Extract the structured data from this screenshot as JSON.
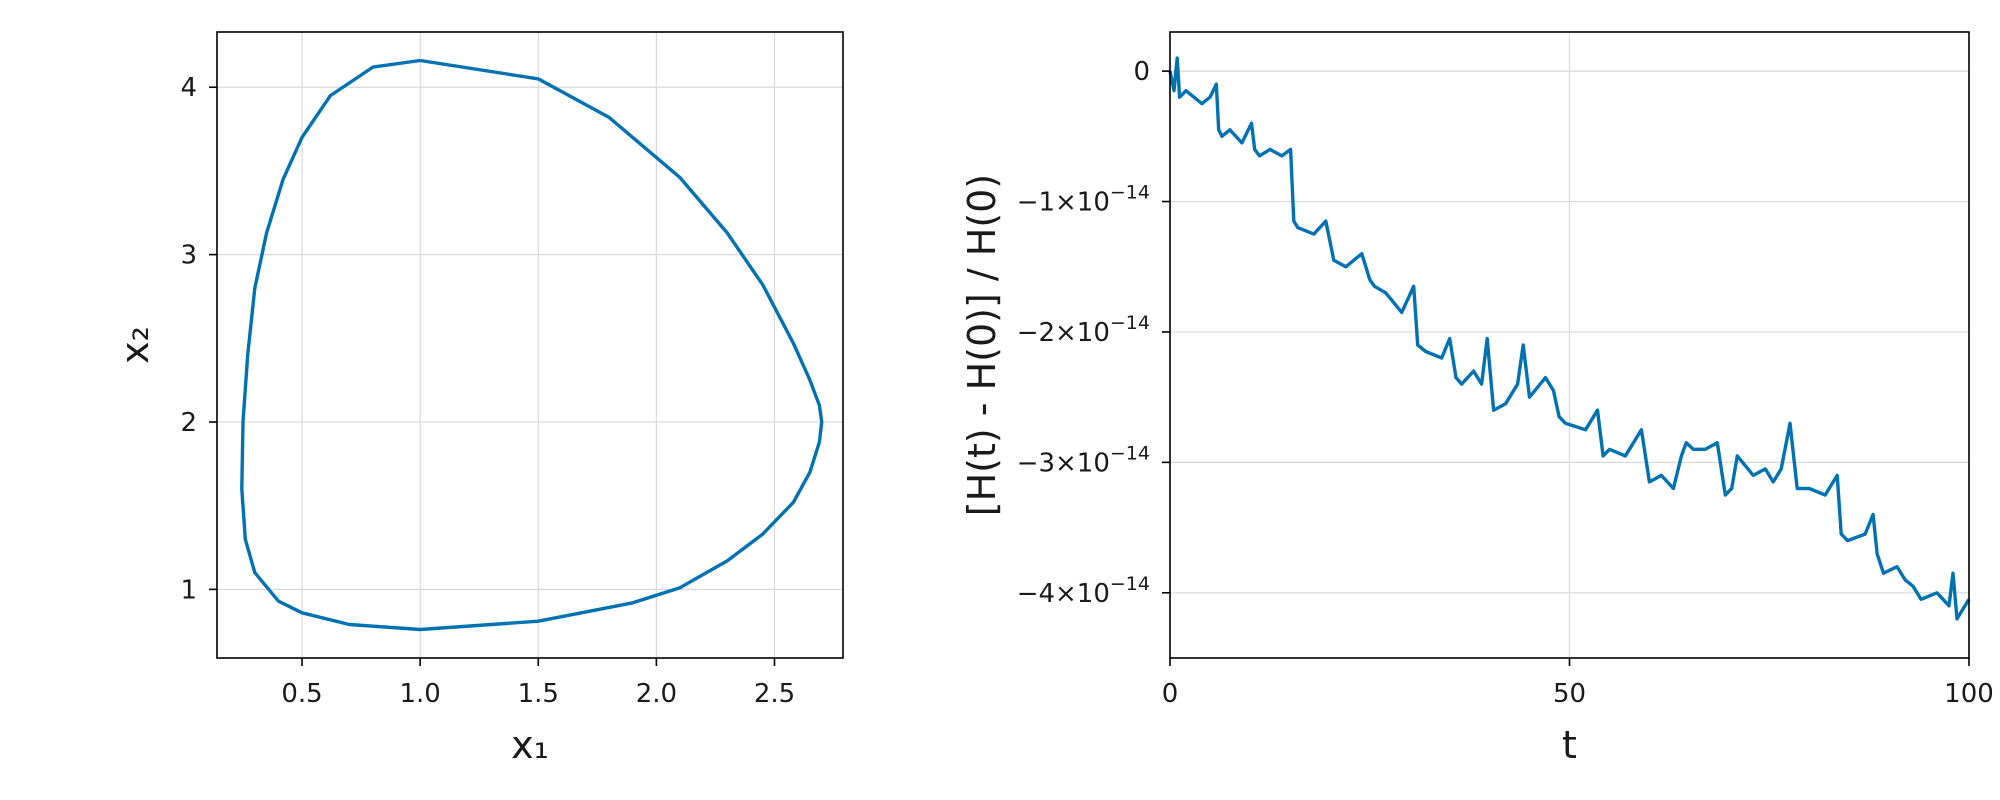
{
  "chart_data": [
    {
      "type": "line",
      "title": "",
      "xlabel": "x₁",
      "ylabel": "x₂",
      "xlim": [
        0.14,
        2.79
      ],
      "ylim": [
        0.59,
        4.33
      ],
      "xticks": [
        0.5,
        1.0,
        1.5,
        2.0,
        2.5
      ],
      "xtick_labels": [
        "0.5",
        "1.0",
        "1.5",
        "2.0",
        "2.5"
      ],
      "yticks": [
        1,
        2,
        3,
        4
      ],
      "ytick_labels": [
        "1",
        "2",
        "3",
        "4"
      ],
      "grid": true,
      "color": "#0072b2",
      "series": [
        {
          "x": [
            1.0,
            1.5,
            1.8,
            2.1,
            2.3,
            2.45,
            2.58,
            2.65,
            2.69,
            2.7,
            2.69,
            2.65,
            2.58,
            2.45,
            2.3,
            2.1,
            1.9,
            1.5,
            1.0,
            0.7,
            0.5,
            0.4,
            0.3,
            0.26,
            0.245,
            0.25,
            0.27,
            0.3,
            0.35,
            0.42,
            0.5,
            0.62,
            0.8,
            1.0
          ],
          "y": [
            4.16,
            4.05,
            3.82,
            3.46,
            3.13,
            2.82,
            2.47,
            2.25,
            2.1,
            2.0,
            1.88,
            1.7,
            1.52,
            1.33,
            1.17,
            1.01,
            0.92,
            0.81,
            0.76,
            0.79,
            0.86,
            0.93,
            1.1,
            1.3,
            1.6,
            2.0,
            2.4,
            2.8,
            3.13,
            3.45,
            3.7,
            3.95,
            4.12,
            4.16
          ]
        }
      ]
    },
    {
      "type": "line",
      "title": "",
      "xlabel": "t",
      "ylabel": "[H(t) - H(0)] / H(0)",
      "xlim": [
        0,
        100
      ],
      "ylim": [
        -4.5e-14,
        3e-15
      ],
      "xticks": [
        0,
        50,
        100
      ],
      "xtick_labels": [
        "0",
        "50",
        "100"
      ],
      "yticks": [
        0,
        -1e-14,
        -2e-14,
        -3e-14,
        -4e-14
      ],
      "ytick_labels": [
        {
          "base": "0",
          "exp": ""
        },
        {
          "base": "−1×10",
          "exp": "−14"
        },
        {
          "base": "−2×10",
          "exp": "−14"
        },
        {
          "base": "−3×10",
          "exp": "−14"
        },
        {
          "base": "−4×10",
          "exp": "−14"
        }
      ],
      "grid": true,
      "color": "#0072b2",
      "series": [
        {
          "x": [
            0,
            0.5,
            0.9,
            1.2,
            2,
            3,
            4,
            5,
            5.8,
            6.1,
            6.5,
            7.5,
            9,
            10.2,
            10.6,
            11.2,
            12.5,
            14,
            15.1,
            15.5,
            16,
            18,
            19.5,
            20.5,
            22,
            24,
            25,
            25.6,
            27,
            29,
            30.5,
            31,
            32,
            34,
            35,
            35.8,
            36.5,
            38,
            39,
            39.7,
            40.5,
            42,
            43.5,
            44.2,
            45,
            47,
            48,
            48.7,
            49.5,
            52,
            53.5,
            54.2,
            55,
            57,
            59,
            60,
            61.5,
            63,
            64,
            64.6,
            65.5,
            67,
            68.5,
            69.5,
            70.3,
            71,
            73,
            74.5,
            75.5,
            76.5,
            77.6,
            78.5,
            80,
            82,
            83.5,
            84,
            84.8,
            87,
            88,
            88.5,
            89.3,
            91,
            92,
            93,
            94,
            96,
            97.5,
            98,
            98.5,
            99.5,
            100
          ],
          "y": [
            0,
            -1.5e-15,
            1e-15,
            -2e-15,
            -1.5e-15,
            -2e-15,
            -2.5e-15,
            -2e-15,
            -1e-15,
            -4.5e-15,
            -5e-15,
            -4.5e-15,
            -5.5e-15,
            -4e-15,
            -6e-15,
            -6.5e-15,
            -6e-15,
            -6.5e-15,
            -6e-15,
            -1.15e-14,
            -1.2e-14,
            -1.25e-14,
            -1.15e-14,
            -1.45e-14,
            -1.5e-14,
            -1.4e-14,
            -1.6e-14,
            -1.65e-14,
            -1.7e-14,
            -1.85e-14,
            -1.65e-14,
            -2.1e-14,
            -2.15e-14,
            -2.2e-14,
            -2.05e-14,
            -2.35e-14,
            -2.4e-14,
            -2.3e-14,
            -2.4e-14,
            -2.05e-14,
            -2.6e-14,
            -2.55e-14,
            -2.4e-14,
            -2.1e-14,
            -2.5e-14,
            -2.35e-14,
            -2.45e-14,
            -2.65e-14,
            -2.7e-14,
            -2.75e-14,
            -2.6e-14,
            -2.95e-14,
            -2.9e-14,
            -2.95e-14,
            -2.75e-14,
            -3.15e-14,
            -3.1e-14,
            -3.2e-14,
            -2.95e-14,
            -2.85e-14,
            -2.9e-14,
            -2.9e-14,
            -2.85e-14,
            -3.25e-14,
            -3.2e-14,
            -2.95e-14,
            -3.1e-14,
            -3.05e-14,
            -3.15e-14,
            -3.05e-14,
            -2.7e-14,
            -3.2e-14,
            -3.2e-14,
            -3.25e-14,
            -3.1e-14,
            -3.55e-14,
            -3.6e-14,
            -3.55e-14,
            -3.4e-14,
            -3.7e-14,
            -3.85e-14,
            -3.8e-14,
            -3.9e-14,
            -3.95e-14,
            -4.05e-14,
            -4e-14,
            -4.1e-14,
            -3.85e-14,
            -4.2e-14,
            -4.1e-14,
            -4.05e-14
          ]
        }
      ]
    }
  ]
}
